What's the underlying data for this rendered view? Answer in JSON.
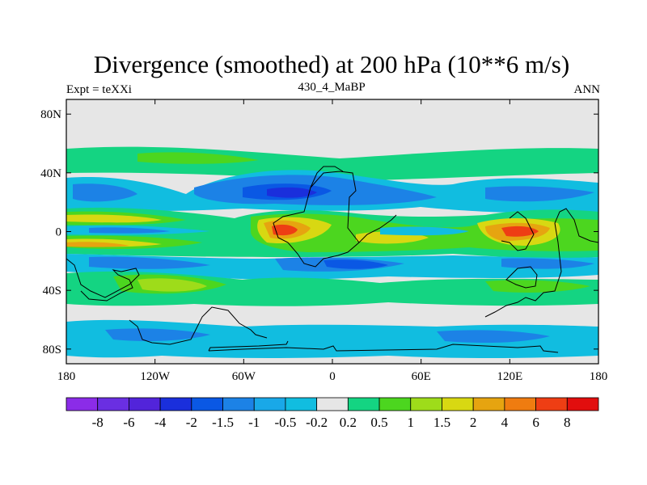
{
  "chart_data": {
    "type": "heatmap",
    "title": "Divergence (smoothed) at 200 hPa (10**6 m/s)",
    "subtitle_left": "Expt = teXXi",
    "subtitle_center": "430_4_MaBP",
    "subtitle_right": "ANN",
    "x_axis": {
      "range": [
        -180,
        180
      ],
      "ticks": [
        {
          "value": -180,
          "label": "180"
        },
        {
          "value": -120,
          "label": "120W"
        },
        {
          "value": -60,
          "label": "60W"
        },
        {
          "value": 0,
          "label": "0"
        },
        {
          "value": 60,
          "label": "60E"
        },
        {
          "value": 120,
          "label": "120E"
        },
        {
          "value": 180,
          "label": "180"
        }
      ]
    },
    "y_axis": {
      "range": [
        -90,
        90
      ],
      "ticks": [
        {
          "value": 80,
          "label": "80N"
        },
        {
          "value": 40,
          "label": "40N"
        },
        {
          "value": 0,
          "label": "0"
        },
        {
          "value": -40,
          "label": "40S"
        },
        {
          "value": -80,
          "label": "80S"
        }
      ]
    },
    "colorbar": {
      "labels": [
        "-8",
        "-6",
        "-4",
        "-2",
        "-1.5",
        "-1",
        "-0.5",
        "-0.2",
        "0.2",
        "0.5",
        "1",
        "1.5",
        "2",
        "4",
        "6",
        "8"
      ],
      "colors": [
        "#8b2ce8",
        "#6a2fe2",
        "#5224da",
        "#1a2fdc",
        "#0a58e4",
        "#1c82e6",
        "#19a8e8",
        "#11bde0",
        "#e6e6e6",
        "#14d482",
        "#4cd61f",
        "#9edc1a",
        "#d8d812",
        "#e6a410",
        "#ef7c10",
        "#ee3e14",
        "#e20e0e"
      ]
    },
    "features": [
      {
        "label": "N-mid-lat positive band",
        "lon_range": [
          -180,
          180
        ],
        "lat_range": [
          40,
          60
        ],
        "value_class": 0.5
      },
      {
        "label": "N subtropical negative",
        "lon_range": [
          -180,
          180
        ],
        "lat_range": [
          15,
          35
        ],
        "value_class": -1.5
      },
      {
        "label": "Equatorial positive",
        "lon_range": [
          -180,
          180
        ],
        "lat_range": [
          -10,
          10
        ],
        "value_class": 2
      },
      {
        "label": "Atlantic/African convergence max",
        "lon_range": [
          -40,
          0
        ],
        "lat_range": [
          -5,
          10
        ],
        "value_class": 4
      },
      {
        "label": "Maritime continent divergence max",
        "lon_range": [
          110,
          160
        ],
        "lat_range": [
          -5,
          10
        ],
        "value_class": 6
      },
      {
        "label": "S subtropical negative",
        "lon_range": [
          -180,
          180
        ],
        "lat_range": [
          -40,
          -15
        ],
        "value_class": -1
      },
      {
        "label": "S mid-lat positive",
        "lon_range": [
          -180,
          180
        ],
        "lat_range": [
          -55,
          -40
        ],
        "value_class": 1
      },
      {
        "label": "S high-lat negative",
        "lon_range": [
          -180,
          180
        ],
        "lat_range": [
          -80,
          -60
        ],
        "value_class": -0.5
      }
    ]
  }
}
